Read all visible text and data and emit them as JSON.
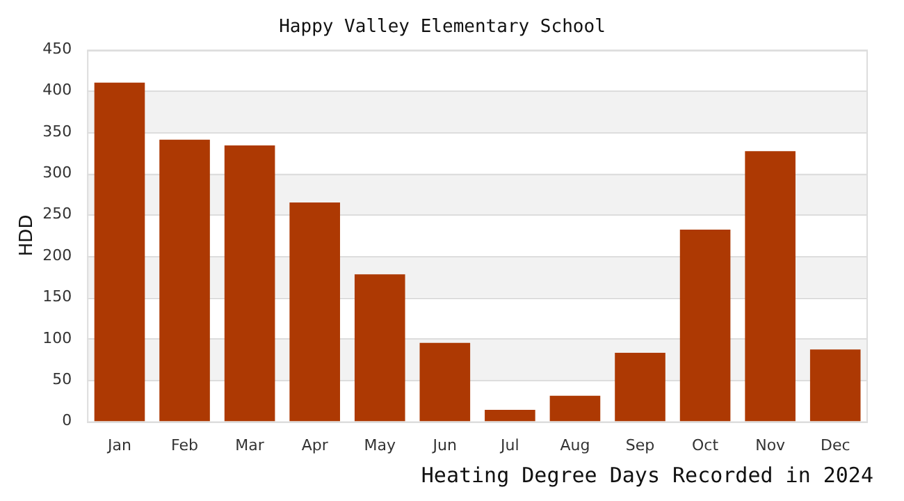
{
  "chart_data": {
    "type": "bar",
    "title": "Happy Valley Elementary School",
    "ylabel": "HDD",
    "annotations": [
      "Heating Degree Days Recorded in 2024"
    ],
    "categories": [
      "Jan",
      "Feb",
      "Mar",
      "Apr",
      "May",
      "Jun",
      "Jul",
      "Aug",
      "Sep",
      "Oct",
      "Nov",
      "Dec"
    ],
    "values": [
      410,
      341,
      334,
      265,
      178,
      95,
      14,
      31,
      83,
      232,
      327,
      87
    ],
    "color": "#ad3903",
    "ylim": [
      0,
      450
    ],
    "yticks": [
      0,
      50,
      100,
      150,
      200,
      250,
      300,
      350,
      400,
      450
    ],
    "grid": true
  }
}
